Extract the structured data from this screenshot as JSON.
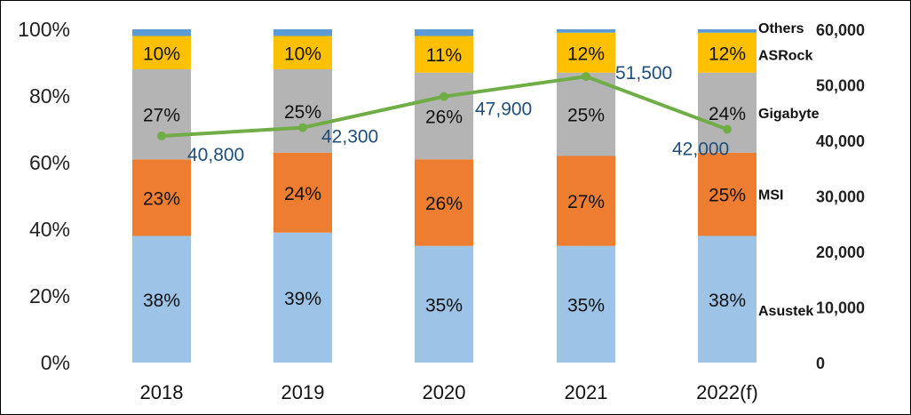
{
  "chart_data": {
    "type": "bar",
    "stacked": true,
    "categories": [
      "2018",
      "2019",
      "2020",
      "2021",
      "2022(f)"
    ],
    "series": [
      {
        "name": "Asustek",
        "values": [
          38,
          39,
          35,
          35,
          38
        ],
        "labels": [
          "38%",
          "39%",
          "35%",
          "35%",
          "38%"
        ],
        "color": "#9dc3e6"
      },
      {
        "name": "MSI",
        "values": [
          23,
          24,
          26,
          27,
          25
        ],
        "labels": [
          "23%",
          "24%",
          "26%",
          "27%",
          "25%"
        ],
        "color": "#ed7d31"
      },
      {
        "name": "Gigabyte",
        "values": [
          27,
          25,
          26,
          25,
          24
        ],
        "labels": [
          "27%",
          "25%",
          "26%",
          "25%",
          "24%"
        ],
        "color": "#b4b4b4"
      },
      {
        "name": "ASRock",
        "values": [
          10,
          10,
          11,
          12,
          12
        ],
        "labels": [
          "10%",
          "10%",
          "11%",
          "12%",
          "12%"
        ],
        "color": "#ffc000"
      },
      {
        "name": "Others",
        "values": [
          2,
          2,
          2,
          1,
          1
        ],
        "labels": [
          "",
          "",
          "",
          "",
          ""
        ],
        "color": "#5b9bd5"
      }
    ],
    "line_series": {
      "name": "Shipments",
      "values": [
        40800,
        42300,
        47900,
        51500,
        42000
      ],
      "labels": [
        "40,800",
        "42,300",
        "47,900",
        "51,500",
        "42,000"
      ],
      "color": "#70ad47"
    },
    "y_left": {
      "ticks": [
        "0%",
        "20%",
        "40%",
        "60%",
        "80%",
        "100%"
      ],
      "range": [
        0,
        100
      ]
    },
    "y_right": {
      "ticks": [
        "0",
        "10,000",
        "20,000",
        "30,000",
        "40,000",
        "50,000",
        "60,000"
      ],
      "range": [
        0,
        60000
      ]
    },
    "legend": [
      "Others",
      "ASRock",
      "Gigabyte",
      "MSI",
      "Asustek"
    ],
    "legend_position": "right",
    "grid": false
  }
}
